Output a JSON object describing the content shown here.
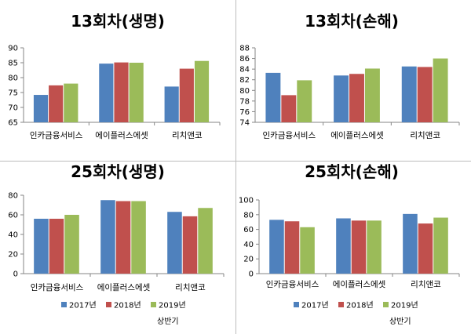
{
  "colors": {
    "2017년": "#4f81bd",
    "2018년": "#c0504d",
    "2019년 상반기": "#9bbb59"
  },
  "chart_data": [
    {
      "type": "bar",
      "title": "13회차(생명)",
      "categories": [
        "인카금융서비스",
        "에이플러스에셋",
        "리치앤코"
      ],
      "series": [
        {
          "name": "2017년",
          "values": [
            74.2,
            84.7,
            77
          ]
        },
        {
          "name": "2018년",
          "values": [
            77.4,
            85.1,
            83
          ]
        },
        {
          "name": "2019년 상반기",
          "values": [
            78,
            85,
            85.6
          ]
        }
      ],
      "ylim": [
        65,
        90
      ],
      "yticks": [
        65,
        70,
        75,
        80,
        85,
        90
      ],
      "xlabel": "",
      "ylabel": "",
      "grid": false,
      "legend": ""
    },
    {
      "type": "bar",
      "title": "13회차(손해)",
      "categories": [
        "인카금융서비스",
        "에이플러스에셋",
        "리치앤코"
      ],
      "series": [
        {
          "name": "2017년",
          "values": [
            83.3,
            82.8,
            84.5
          ]
        },
        {
          "name": "2018년",
          "values": [
            79.1,
            83.1,
            84.4
          ]
        },
        {
          "name": "2019년 상반기",
          "values": [
            81.9,
            84.1,
            86
          ]
        }
      ],
      "ylim": [
        74,
        88
      ],
      "yticks": [
        74,
        76,
        78,
        80,
        82,
        84,
        86,
        88
      ],
      "xlabel": "",
      "ylabel": "",
      "grid": false,
      "legend": ""
    },
    {
      "type": "bar",
      "title": "25회차(생명)",
      "categories": [
        "인카금융서비스",
        "에이플러스에셋",
        "리치앤코"
      ],
      "series": [
        {
          "name": "2017년",
          "values": [
            56,
            75,
            63
          ]
        },
        {
          "name": "2018년",
          "values": [
            56,
            74,
            58.5
          ]
        },
        {
          "name": "2019년 상반기",
          "values": [
            60,
            74,
            67
          ]
        }
      ],
      "ylim": [
        0,
        80
      ],
      "yticks": [
        0,
        20,
        40,
        60,
        80
      ],
      "xlabel": "",
      "ylabel": "",
      "grid": false,
      "legend": "bottom",
      "legend_items": [
        "2017년",
        "2018년",
        "2019년"
      ],
      "legend_note": "상반기"
    },
    {
      "type": "bar",
      "title": "25회차(손해)",
      "categories": [
        "인카금융서비스",
        "에이플러스에셋",
        "리치앤코"
      ],
      "series": [
        {
          "name": "2017년",
          "values": [
            73,
            75,
            81
          ]
        },
        {
          "name": "2018년",
          "values": [
            71,
            72,
            68
          ]
        },
        {
          "name": "2019년 상반기",
          "values": [
            63,
            72,
            76
          ]
        }
      ],
      "ylim": [
        0,
        100
      ],
      "yticks": [
        0,
        20,
        40,
        60,
        80,
        100
      ],
      "xlabel": "",
      "ylabel": "",
      "grid": false,
      "legend": "bottom",
      "legend_items": [
        "2017년",
        "2018년",
        "2019년"
      ],
      "legend_note": "상반기"
    }
  ]
}
